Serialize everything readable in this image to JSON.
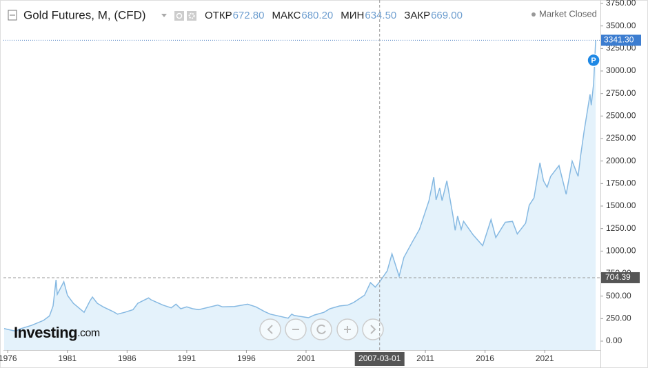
{
  "chart_data": {
    "type": "line",
    "title": "Gold Futures, M, (CFD)",
    "stats": [
      {
        "label": "ОТКР",
        "value": "672.80"
      },
      {
        "label": "МАКС",
        "value": "680.20"
      },
      {
        "label": "МИН",
        "value": "634.50"
      },
      {
        "label": "ЗАКР",
        "value": "669.00"
      }
    ],
    "status": "Market Closed",
    "logo": {
      "name": "Investing",
      "suffix": ".com"
    },
    "badge": "P",
    "x": [
      1975.7,
      1976,
      1976.7,
      1977,
      1978,
      1979,
      1979.5,
      1979.8,
      1980.05,
      1980.15,
      1980.7,
      1981,
      1981.5,
      1982.4,
      1982.9,
      1983.1,
      1983.5,
      1984,
      1984.8,
      1985.2,
      1985.8,
      1986.5,
      1986.9,
      1987.8,
      1988,
      1988.5,
      1989,
      1989.7,
      1990.1,
      1990.5,
      1991,
      1991.5,
      1992,
      1993.6,
      1994,
      1995,
      1996.1,
      1996.8,
      1997.5,
      1998,
      1999.5,
      1999.8,
      2000,
      2001.2,
      2001.7,
      2002.5,
      2003,
      2003.8,
      2004.5,
      2005,
      2005.9,
      2006.4,
      2006.8,
      2007.17,
      2007.8,
      2008.2,
      2008.8,
      2009.2,
      2009.9,
      2010.5,
      2011.3,
      2011.7,
      2011.9,
      2012.2,
      2012.4,
      2012.8,
      2013.3,
      2013.5,
      2013.7,
      2014,
      2014.2,
      2015,
      2015.8,
      2016.5,
      2016.9,
      2017.7,
      2018.3,
      2018.7,
      2019.4,
      2019.7,
      2020.1,
      2020.6,
      2020.9,
      2021.2,
      2021.5,
      2022.2,
      2022.8,
      2023.3,
      2023.8,
      2024,
      2024.3,
      2024.8,
      2024.9,
      2025.1,
      2025.27
    ],
    "series": [
      {
        "color": "#86b9e2",
        "values": [
          140,
          130,
          110,
          135,
          175,
          230,
          280,
          390,
          680,
          520,
          660,
          510,
          420,
          320,
          450,
          490,
          420,
          380,
          330,
          300,
          320,
          350,
          420,
          480,
          460,
          430,
          400,
          370,
          410,
          360,
          380,
          360,
          350,
          400,
          380,
          385,
          410,
          380,
          330,
          300,
          255,
          300,
          285,
          260,
          290,
          320,
          360,
          390,
          400,
          430,
          510,
          650,
          600,
          660,
          780,
          970,
          720,
          930,
          1100,
          1240,
          1560,
          1820,
          1570,
          1700,
          1560,
          1780,
          1400,
          1230,
          1390,
          1240,
          1330,
          1180,
          1060,
          1350,
          1150,
          1320,
          1330,
          1190,
          1310,
          1510,
          1590,
          1980,
          1780,
          1710,
          1830,
          1950,
          1630,
          2000,
          1830,
          2050,
          2330,
          2740,
          2620,
          2860,
          3341.3
        ]
      }
    ],
    "xlim": [
      1975.64,
      2025.67
    ],
    "ylim": [
      0,
      3750
    ],
    "xticks": [
      1976,
      1981,
      1986,
      1991,
      1996,
      2001,
      2011,
      2016,
      2021
    ],
    "yticks": [
      {
        "value": 0,
        "label": "0.00"
      },
      {
        "value": 250,
        "label": "250.00"
      },
      {
        "value": 500,
        "label": "500.00"
      },
      {
        "value": 750,
        "label": "750.00"
      },
      {
        "value": 1000,
        "label": "1000.00"
      },
      {
        "value": 1250,
        "label": "1250.00"
      },
      {
        "value": 1500,
        "label": "1500.00"
      },
      {
        "value": 1750,
        "label": "1750.00"
      },
      {
        "value": 2000,
        "label": "2000.00"
      },
      {
        "value": 2250,
        "label": "2250.00"
      },
      {
        "value": 2500,
        "label": "2500.00"
      },
      {
        "value": 2750,
        "label": "2750.00"
      },
      {
        "value": 3000,
        "label": "3000.00"
      },
      {
        "value": 3250,
        "label": "3250.00"
      },
      {
        "value": 3500,
        "label": "3500.00"
      },
      {
        "value": 3750,
        "label": "3750.00"
      }
    ],
    "last_price": {
      "value": 3341.3,
      "label": "3341.30"
    },
    "crosshair": {
      "x_label": "2007-03-01",
      "y": 704.39
    }
  }
}
